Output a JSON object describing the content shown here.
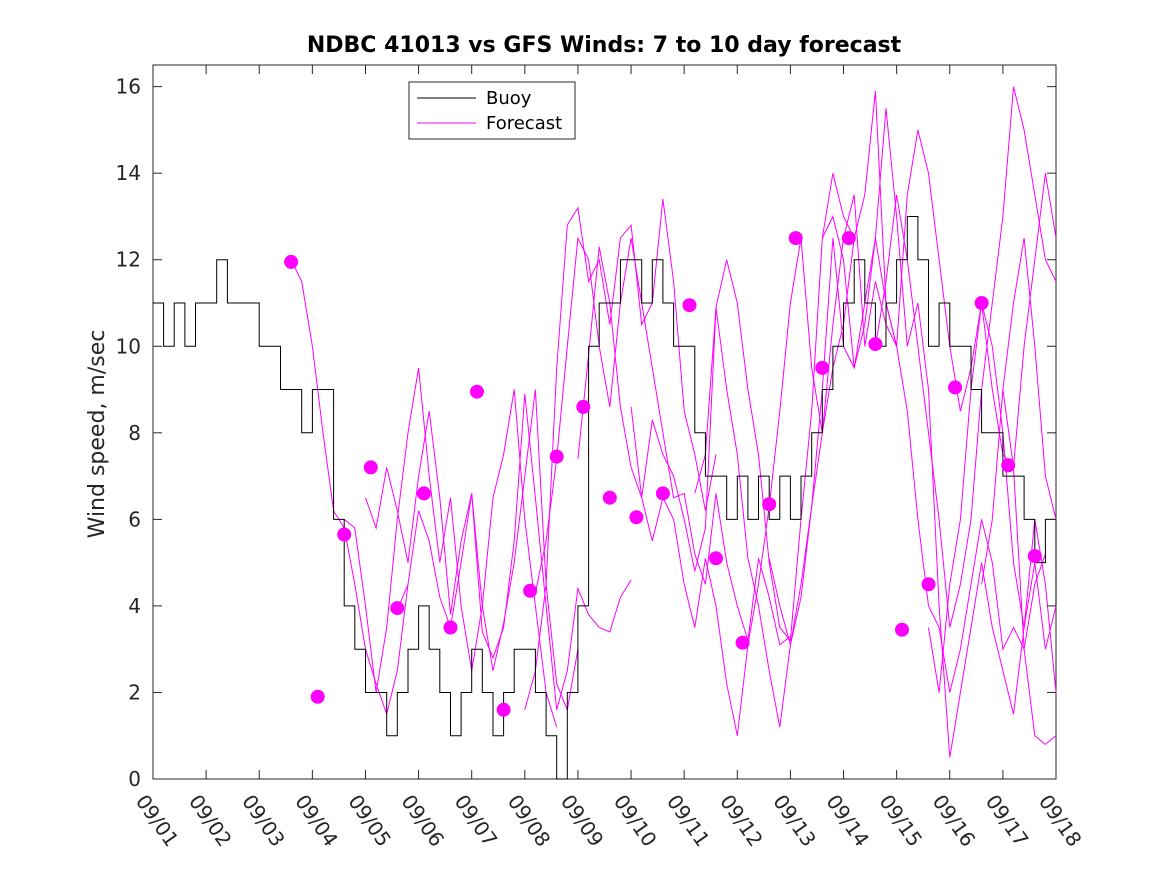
{
  "chart_data": {
    "type": "line",
    "title": "NDBC 41013 vs GFS Winds: 7 to 10 day forecast",
    "xlabel": "",
    "ylabel": "Wind speed, m/sec",
    "xlim": [
      0,
      17
    ],
    "ylim": [
      0,
      16.5
    ],
    "x_tick_labels": [
      "09/01",
      "09/02",
      "09/03",
      "09/04",
      "09/05",
      "09/06",
      "09/07",
      "09/08",
      "09/09",
      "09/10",
      "09/11",
      "09/12",
      "09/13",
      "09/14",
      "09/15",
      "09/16",
      "09/17",
      "09/18"
    ],
    "y_ticks": [
      0,
      2,
      4,
      6,
      8,
      10,
      12,
      14,
      16
    ],
    "legend": {
      "position": "top-center",
      "entries": [
        "Buoy",
        "Forecast"
      ]
    },
    "colors": {
      "buoy": "#000000",
      "forecast": "#ff00ff"
    },
    "series": [
      {
        "name": "Buoy",
        "x": [
          0.0,
          0.2,
          0.4,
          0.6,
          0.8,
          1.0,
          1.2,
          1.4,
          1.6,
          1.8,
          2.0,
          2.2,
          2.4,
          2.6,
          2.8,
          3.0,
          3.2,
          3.4,
          3.6,
          3.8,
          4.0,
          4.2,
          4.4,
          4.6,
          4.8,
          5.0,
          5.2,
          5.4,
          5.6,
          5.8,
          6.0,
          6.2,
          6.4,
          6.6,
          6.8,
          7.0,
          7.2,
          7.4,
          7.6,
          7.8,
          8.0,
          8.2,
          8.4,
          8.6,
          8.8,
          9.0,
          9.2,
          9.4,
          9.6,
          9.8,
          10.0,
          10.2,
          10.4,
          10.6,
          10.8,
          11.0,
          11.2,
          11.4,
          11.6,
          11.8,
          12.0,
          12.2,
          12.4,
          12.6,
          12.8,
          13.0,
          13.2,
          13.4,
          13.6,
          13.8,
          14.0,
          14.2,
          14.4,
          14.6,
          14.8,
          15.0,
          15.2,
          15.4,
          15.6,
          15.8,
          16.0,
          16.2,
          16.4,
          16.6,
          16.8,
          17.0
        ],
        "values": [
          11,
          10,
          11,
          10,
          11,
          11,
          12,
          11,
          11,
          11,
          10,
          10,
          9,
          9,
          8,
          9,
          9,
          6,
          4,
          3,
          2,
          2,
          1,
          2,
          3,
          4,
          3,
          2,
          1,
          2,
          3,
          2,
          1,
          2,
          3,
          3,
          2,
          1,
          0,
          2,
          4,
          10,
          11,
          11,
          12,
          12,
          11,
          12,
          11,
          10,
          10,
          8,
          7,
          7,
          6,
          7,
          6,
          7,
          6,
          7,
          6,
          7,
          8,
          9,
          10,
          11,
          12,
          11,
          10,
          11,
          12,
          13,
          12,
          10,
          11,
          10,
          10,
          9,
          8,
          8,
          7,
          7,
          6,
          5,
          6,
          4
        ]
      },
      {
        "name": "Forecast",
        "lines": [
          {
            "x": [
              2.6,
              2.8,
              3.0,
              3.2,
              3.4,
              3.6,
              3.8,
              4.0,
              4.2,
              4.4,
              4.6,
              4.8
            ],
            "values": [
              12,
              11.5,
              10,
              8,
              6.2,
              5.8,
              4.5,
              3,
              2.2,
              1.5,
              2.5,
              4.5
            ]
          },
          {
            "x": [
              3.6,
              3.8,
              4.0,
              4.2,
              4.4,
              4.6,
              4.8,
              5.0,
              5.2,
              5.4,
              5.6,
              5.8,
              6.0,
              6.2,
              6.4,
              6.6,
              6.8,
              7.0,
              7.2,
              7.4,
              7.6
            ],
            "values": [
              6,
              5.8,
              4,
              2,
              3.5,
              6,
              8,
              9.5,
              7,
              5,
              6.5,
              4,
              2.5,
              4,
              6.5,
              7.5,
              9,
              6,
              4,
              2,
              1.2
            ]
          },
          {
            "x": [
              4.0,
              4.2,
              4.4,
              4.6,
              4.8,
              5.0,
              5.2,
              5.4,
              5.6,
              5.8,
              6.0,
              6.2,
              6.4,
              6.6,
              6.8,
              7.0,
              7.2,
              7.4,
              7.6,
              7.8,
              8.0
            ],
            "values": [
              6.5,
              5.8,
              7.2,
              6.2,
              5,
              7,
              8.5,
              6.5,
              3.8,
              5.5,
              6.6,
              4,
              2.5,
              3.6,
              5,
              7,
              9,
              4.5,
              2.2,
              1.6,
              3
            ]
          },
          {
            "x": [
              4.6,
              4.8,
              5.0,
              5.2,
              5.4,
              5.6,
              5.8,
              6.0,
              6.2,
              6.4,
              6.6,
              6.8,
              7.0,
              7.2,
              7.4,
              7.6,
              7.8,
              8.0,
              8.2,
              8.4,
              8.6,
              8.8,
              9.0
            ],
            "values": [
              3.9,
              4.5,
              6.2,
              5.5,
              4.2,
              3.5,
              5,
              6.6,
              3.4,
              2.8,
              3.5,
              5.5,
              8.9,
              6.5,
              4,
              1.6,
              2.5,
              4.4,
              3.8,
              3.5,
              3.4,
              4.2,
              4.6
            ]
          },
          {
            "x": [
              7.0,
              7.2,
              7.4,
              7.6,
              7.8,
              8.0,
              8.2,
              8.4,
              8.6,
              8.8,
              9.0,
              9.2,
              9.4,
              9.6,
              9.8,
              10.0,
              10.2,
              10.4,
              10.6
            ],
            "values": [
              1.6,
              2.5,
              4.5,
              9.5,
              12.8,
              13.2,
              11.5,
              12,
              10.5,
              12.5,
              12.8,
              10.5,
              11,
              13.4,
              11.5,
              8.5,
              7.5,
              6.2,
              7.5
            ]
          },
          {
            "x": [
              7.2,
              7.4,
              7.6,
              7.8,
              8.0,
              8.2,
              8.4,
              8.6,
              8.8,
              9.0,
              9.2,
              9.4,
              9.6,
              9.8,
              10.0,
              10.2,
              10.4,
              10.6,
              10.8,
              11.0,
              11.2,
              11.4,
              11.6,
              11.8,
              12.0
            ],
            "values": [
              4.3,
              5.5,
              7.4,
              10,
              12.5,
              12,
              10,
              8.6,
              11,
              12.5,
              11,
              9.5,
              8,
              6.5,
              6.6,
              5.2,
              4.5,
              6.6,
              5,
              4,
              3.2,
              5.1,
              4.2,
              3.1,
              3.3
            ]
          },
          {
            "x": [
              8.0,
              8.2,
              8.4,
              8.6,
              8.8,
              9.0,
              9.2,
              9.4,
              9.6,
              9.8,
              10.0,
              10.2,
              10.4,
              10.6,
              10.8,
              11.0,
              11.2,
              11.4,
              11.6,
              11.8,
              12.0,
              12.2,
              12.4,
              12.6,
              12.8,
              13.0,
              13.2
            ],
            "values": [
              7.4,
              9.8,
              12.3,
              11,
              8.6,
              7.2,
              6.5,
              8.3,
              7.5,
              7,
              6,
              4.8,
              5.8,
              10.9,
              9,
              7.5,
              5.1,
              4,
              2.5,
              1.2,
              3.1,
              4.2,
              6.3,
              8,
              9.5,
              10.5,
              12.5
            ]
          },
          {
            "x": [
              9.0,
              9.2,
              9.4,
              9.6,
              9.8,
              10.0,
              10.2,
              10.4,
              10.6,
              10.8,
              11.0,
              11.2,
              11.4,
              11.6,
              11.8,
              12.0,
              12.2,
              12.4,
              12.6,
              12.8,
              13.0,
              13.2,
              13.4,
              13.6,
              13.8,
              14.0
            ],
            "values": [
              8.6,
              6.5,
              5.5,
              6.5,
              6,
              4.5,
              3.5,
              5.1,
              4,
              2.2,
              1,
              3.1,
              4.5,
              6.3,
              8.5,
              11,
              12.5,
              9.5,
              8,
              10.5,
              12.5,
              13.5,
              10,
              11.5,
              10.5,
              10
            ]
          },
          {
            "x": [
              10.2,
              10.4,
              10.6,
              10.8,
              11.0,
              11.2,
              11.4,
              11.6,
              11.8,
              12.0,
              12.2,
              12.4,
              12.6,
              12.8,
              13.0,
              13.2,
              13.4,
              13.6,
              13.8,
              14.0,
              14.2,
              14.4,
              14.6,
              14.8,
              15.0,
              15.2,
              15.4,
              15.6,
              15.8,
              16.0,
              16.2,
              16.4,
              16.6,
              16.8
            ],
            "values": [
              6.6,
              7.5,
              10.9,
              12,
              11,
              9,
              7.5,
              5,
              3.5,
              3.2,
              6,
              8.5,
              12.5,
              14,
              13,
              12.5,
              13.5,
              15.9,
              11,
              10,
              8.5,
              6,
              4,
              3.5,
              2,
              3,
              4.5,
              6,
              5,
              3,
              3.5,
              3,
              4.5,
              5.2
            ]
          },
          {
            "x": [
              11.6,
              11.8,
              12.0,
              12.2,
              12.4,
              12.6,
              12.8,
              13.0,
              13.2,
              13.4,
              13.6,
              13.8,
              14.0,
              14.2,
              14.4,
              14.6,
              14.8,
              15.0,
              15.2,
              15.4,
              15.6,
              15.8,
              16.0,
              16.2,
              16.4,
              16.6,
              16.8,
              17.0
            ],
            "values": [
              5.1,
              4,
              3.1,
              4.5,
              6.3,
              9,
              12.5,
              10,
              9.5,
              11,
              12.5,
              15.5,
              13,
              10,
              11,
              9,
              4,
              0.5,
              2,
              3.5,
              5,
              3.5,
              2.5,
              1.5,
              3.5,
              5,
              3,
              4
            ]
          },
          {
            "x": [
              12.6,
              12.8,
              13.0,
              13.2,
              13.4,
              13.6,
              13.8,
              14.0,
              14.2,
              14.4,
              14.6,
              14.8,
              15.0,
              15.2,
              15.4,
              15.6,
              15.8,
              16.0,
              16.2,
              16.4,
              16.6,
              16.8,
              17.0
            ],
            "values": [
              12.5,
              13,
              12,
              9.5,
              10.5,
              12.5,
              11,
              10,
              13.5,
              15,
              14,
              12,
              10,
              8.5,
              9.5,
              11,
              9,
              7.5,
              7.2,
              10,
              12,
              14,
              12.5
            ]
          },
          {
            "x": [
              13.6,
              13.8,
              14.0,
              14.2,
              14.4,
              14.6,
              14.8,
              15.0,
              15.2,
              15.4,
              15.6,
              15.8,
              16.0,
              16.2,
              16.4,
              16.6,
              16.8,
              17.0
            ],
            "values": [
              10,
              11.5,
              13.5,
              12,
              10,
              8,
              6,
              3.5,
              4.5,
              6,
              9,
              11,
              13,
              16,
              15,
              13.5,
              12,
              11.5
            ]
          },
          {
            "x": [
              14.6,
              14.8,
              15.0,
              15.2,
              15.4,
              15.6,
              15.8,
              16.0,
              16.2,
              16.4,
              16.6,
              16.8,
              17.0
            ],
            "values": [
              3.5,
              2,
              4.5,
              6,
              9,
              11,
              10,
              8,
              5,
              3.5,
              6,
              4.5,
              2
            ]
          },
          {
            "x": [
              15.6,
              15.8,
              16.0,
              16.2,
              16.4,
              16.6,
              16.8,
              17.0
            ],
            "values": [
              4.5,
              6,
              9,
              11,
              12.5,
              10,
              7,
              6
            ]
          },
          {
            "x": [
              16.0,
              16.2,
              16.4,
              16.6,
              16.8,
              17.0
            ],
            "values": [
              9,
              7.2,
              3,
              1,
              0.8,
              1
            ]
          }
        ],
        "markers": [
          {
            "x": 2.6,
            "y": 11.95
          },
          {
            "x": 3.1,
            "y": 1.9
          },
          {
            "x": 3.6,
            "y": 5.65
          },
          {
            "x": 4.1,
            "y": 7.2
          },
          {
            "x": 4.6,
            "y": 3.95
          },
          {
            "x": 5.1,
            "y": 6.6
          },
          {
            "x": 5.6,
            "y": 3.5
          },
          {
            "x": 6.1,
            "y": 8.95
          },
          {
            "x": 6.6,
            "y": 1.6
          },
          {
            "x": 7.1,
            "y": 4.35
          },
          {
            "x": 7.6,
            "y": 7.45
          },
          {
            "x": 8.1,
            "y": 8.6
          },
          {
            "x": 8.6,
            "y": 6.5
          },
          {
            "x": 9.1,
            "y": 6.05
          },
          {
            "x": 9.6,
            "y": 6.6
          },
          {
            "x": 10.1,
            "y": 10.95
          },
          {
            "x": 10.6,
            "y": 5.1
          },
          {
            "x": 11.1,
            "y": 3.15
          },
          {
            "x": 11.6,
            "y": 6.35
          },
          {
            "x": 12.1,
            "y": 12.5
          },
          {
            "x": 12.6,
            "y": 9.5
          },
          {
            "x": 13.1,
            "y": 12.5
          },
          {
            "x": 13.6,
            "y": 10.05
          },
          {
            "x": 14.1,
            "y": 3.45
          },
          {
            "x": 14.6,
            "y": 4.5
          },
          {
            "x": 15.1,
            "y": 9.05
          },
          {
            "x": 15.6,
            "y": 11.0
          },
          {
            "x": 16.1,
            "y": 7.25
          },
          {
            "x": 16.6,
            "y": 5.15
          }
        ]
      }
    ]
  }
}
